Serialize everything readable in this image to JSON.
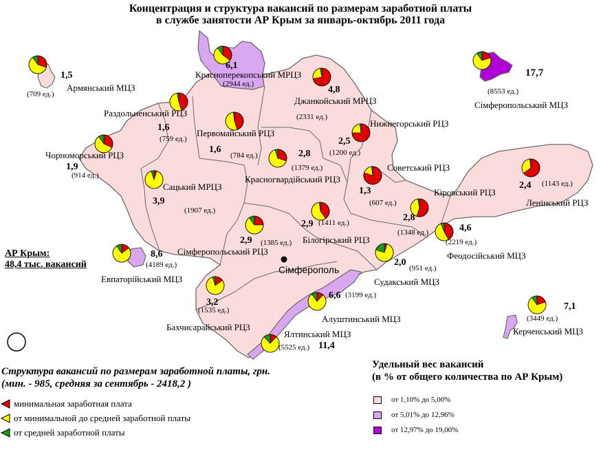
{
  "title": {
    "line1": "Концентрация и структура вакансий по размерам заработной платы",
    "line2": "в службе занятости АР Крым за январь-октябрь 2011 года"
  },
  "colors": {
    "light_pink": "#fadcdc",
    "lavender": "#d9a6f0",
    "purple": "#b000d8",
    "red": "#e00000",
    "yellow": "#ffff00",
    "green": "#1a9a1a",
    "border": "#6a6a6a"
  },
  "city": "Сімферополь",
  "total": {
    "line1": "АР Крым:",
    "line2": "48,4 тыс. вакансий"
  },
  "regions": [
    {
      "id": "armyansk",
      "name": "Армянський МЦЗ",
      "pct": "1,5",
      "count": "(709 ед.)",
      "share": "low",
      "pie": [
        0.3,
        0.6,
        0.1
      ]
    },
    {
      "id": "krasnoperekopsk",
      "name": "Красноперекопський МРЦЗ",
      "pct": "6,1",
      "count": "(2944 ед.)",
      "share": "mid",
      "pie": [
        0.35,
        0.55,
        0.1
      ]
    },
    {
      "id": "simferopol_mcz",
      "name": "Сімферопольський МЦЗ",
      "pct": "17,7",
      "count": "(8553 ед.)",
      "share": "high",
      "pie": [
        0.2,
        0.7,
        0.1
      ]
    },
    {
      "id": "dzhankoy",
      "name": "Джанкойський МРЦЗ",
      "pct": "4,8",
      "count": "(2331 ед.)",
      "share": "low",
      "pie": [
        0.72,
        0.25,
        0.03
      ]
    },
    {
      "id": "razdolnoe",
      "name": "Раздольненський РЦЗ",
      "pct": "1,6",
      "count": "(759 ед.)",
      "share": "low",
      "pie": [
        0.45,
        0.52,
        0.03
      ]
    },
    {
      "id": "pervomayske",
      "name": "Первомайський РЦЗ",
      "pct": "1,6",
      "count": "(784 ед.)",
      "share": "low",
      "pie": [
        0.45,
        0.53,
        0.02
      ]
    },
    {
      "id": "nizhnegorsk",
      "name": "Нижнегорський РЦЗ",
      "pct": "2,5",
      "count": "(1200 ед.)",
      "share": "low",
      "pie": [
        0.75,
        0.23,
        0.02
      ]
    },
    {
      "id": "chornomorske",
      "name": "Чорноморський РЦЗ",
      "pct": "1,9",
      "count": "(914 ед.)",
      "share": "low",
      "pie": [
        0.32,
        0.58,
        0.1
      ]
    },
    {
      "id": "krasnogvard",
      "name": "Красногвардійський РЦЗ",
      "pct": "2,8",
      "count": "(1379 ед.)",
      "share": "low",
      "pie": [
        0.3,
        0.65,
        0.05
      ]
    },
    {
      "id": "sovetsky",
      "name": "Советський РЦЗ",
      "pct": "1,3",
      "count": "(607 ед.)",
      "share": "low",
      "pie": [
        0.8,
        0.18,
        0.02
      ]
    },
    {
      "id": "saki",
      "name": "Сацький МРЦЗ",
      "pct": "3,9",
      "count": "(1907 ед.)",
      "share": "low",
      "pie": [
        0.05,
        0.9,
        0.05
      ]
    },
    {
      "id": "leninsky",
      "name": "Ленінський РЦЗ",
      "pct": "2,4",
      "count": "(1143 ед.)",
      "share": "low",
      "pie": [
        0.65,
        0.33,
        0.02
      ]
    },
    {
      "id": "kirovsky",
      "name": "Кіровський РЦЗ",
      "pct": "2,8",
      "count": "(1348 ед.)",
      "share": "low",
      "pie": [
        0.55,
        0.42,
        0.03
      ]
    },
    {
      "id": "belogorsk",
      "name": "Білогірський РЦЗ",
      "pct": "2,9",
      "count": "(1411 ед.)",
      "share": "low",
      "pie": [
        0.4,
        0.58,
        0.02
      ]
    },
    {
      "id": "simferopol_rcz",
      "name": "Сімферопольський РЦЗ",
      "pct": "2,9",
      "count": "(1385 ед.)",
      "share": "low",
      "pie": [
        0.25,
        0.65,
        0.1
      ]
    },
    {
      "id": "feodosia",
      "name": "Феодосійський МЦЗ",
      "pct": "4,6",
      "count": "(2219 ед.)",
      "share": "low",
      "pie": [
        0.42,
        0.52,
        0.06
      ]
    },
    {
      "id": "evpatoria",
      "name": "Евпаторійський МЦЗ",
      "pct": "8,6",
      "count": "(4189 ед.)",
      "share": "mid",
      "pie": [
        0.15,
        0.75,
        0.1
      ]
    },
    {
      "id": "sudak",
      "name": "Судакський МЦЗ",
      "pct": "2,0",
      "count": "(951 ед.)",
      "share": "low",
      "pie": [
        0.05,
        0.75,
        0.2
      ]
    },
    {
      "id": "alushta",
      "name": "Алуштинський МЦЗ",
      "pct": "6,6",
      "count": "(3199 ед.)",
      "share": "mid",
      "pie": [
        0.12,
        0.78,
        0.1
      ]
    },
    {
      "id": "bakhchisaray",
      "name": "Бахчисарайський РЦЗ",
      "pct": "3,2",
      "count": "(1535 ед.)",
      "share": "low",
      "pie": [
        0.15,
        0.8,
        0.05
      ]
    },
    {
      "id": "kerch",
      "name": "Керченський МЦЗ",
      "pct": "7,1",
      "count": "(3449 ед.)",
      "share": "mid",
      "pie": [
        0.2,
        0.7,
        0.1
      ]
    },
    {
      "id": "yalta",
      "name": "Ялтинський МЦЗ",
      "pct": "11,4",
      "count": "(5525 ед.)",
      "share": "mid",
      "pie": [
        0.12,
        0.76,
        0.12
      ]
    }
  ],
  "legend_structure": {
    "title1": "Структура вакансий по размерам заработной платы, грн.",
    "title2": "(мин. - 985, средняя за сентябрь - 2418,2 )",
    "items": [
      {
        "label": "минимальная заработная плата",
        "color": "#e00000"
      },
      {
        "label": "от минимальной до средней заработной платы",
        "color": "#ffff00"
      },
      {
        "label": "от средней заработной платы",
        "color": "#1a9a1a"
      }
    ]
  },
  "legend_share": {
    "title1": "Удельный вес вакансий",
    "title2": "(в % от общего количества по АР Крым)",
    "items": [
      {
        "label": "от 1,10% до 5,00%",
        "color": "#fadcdc"
      },
      {
        "label": "от 5,01% до 12,96%",
        "color": "#d9a6f0"
      },
      {
        "label": "от 12,97% до 19,00%",
        "color": "#b000d8"
      }
    ]
  }
}
